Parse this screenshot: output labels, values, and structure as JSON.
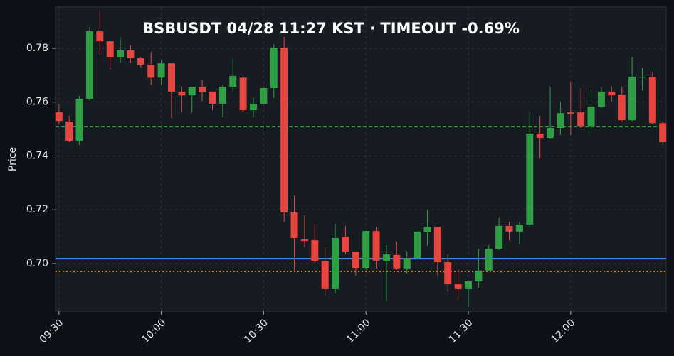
{
  "chart_data": {
    "type": "candlestick",
    "title": "BSBUSDT  04/28 11:27 KST  ·  TIMEOUT -0.69%",
    "ylabel": "Price",
    "x": [
      "09:30",
      "09:33",
      "09:36",
      "09:39",
      "09:42",
      "09:45",
      "09:48",
      "09:51",
      "09:54",
      "09:57",
      "10:00",
      "10:03",
      "10:06",
      "10:09",
      "10:12",
      "10:15",
      "10:18",
      "10:21",
      "10:24",
      "10:27",
      "10:30",
      "10:33",
      "10:36",
      "10:39",
      "10:42",
      "10:45",
      "10:48",
      "10:51",
      "10:54",
      "10:57",
      "11:00",
      "11:03",
      "11:06",
      "11:09",
      "11:12",
      "11:15",
      "11:18",
      "11:21",
      "11:24",
      "11:27",
      "11:30",
      "11:33",
      "11:36",
      "11:39",
      "11:42",
      "11:45",
      "11:48",
      "11:51",
      "11:54",
      "11:57",
      "12:00",
      "12:03",
      "12:06",
      "12:09",
      "12:12",
      "12:15",
      "12:18",
      "12:21",
      "12:24",
      "12:27"
    ],
    "open": [
      0.7562,
      0.7528,
      0.7456,
      0.7612,
      0.7863,
      0.7826,
      0.7768,
      0.7792,
      0.7763,
      0.7739,
      0.7691,
      0.7744,
      0.7639,
      0.7625,
      0.7657,
      0.7639,
      0.7594,
      0.7657,
      0.7691,
      0.757,
      0.7594,
      0.7652,
      0.7802,
      0.719,
      0.709,
      0.7087,
      0.7008,
      0.6905,
      0.71,
      0.7045,
      0.6984,
      0.7121,
      0.7008,
      0.7032,
      0.6982,
      0.7021,
      0.7116,
      0.7137,
      0.7005,
      0.6923,
      0.6905,
      0.6934,
      0.6974,
      0.7055,
      0.714,
      0.7119,
      0.7145,
      0.7483,
      0.7467,
      0.7504,
      0.7562,
      0.7562,
      0.7509,
      0.7583,
      0.7639,
      0.7628,
      0.7533,
      0.7691,
      0.7694,
      0.7522
    ],
    "high": [
      0.7591,
      0.7549,
      0.7623,
      0.7879,
      0.7939,
      0.7826,
      0.7842,
      0.781,
      0.7768,
      0.7786,
      0.7755,
      0.7744,
      0.7657,
      0.7657,
      0.7683,
      0.7639,
      0.7662,
      0.776,
      0.7697,
      0.7617,
      0.7657,
      0.7815,
      0.7842,
      0.7253,
      0.7179,
      0.7148,
      0.7063,
      0.7148,
      0.714,
      0.7045,
      0.7121,
      0.7135,
      0.7069,
      0.7082,
      0.7045,
      0.7119,
      0.7198,
      0.7137,
      0.7037,
      0.6982,
      0.6934,
      0.7055,
      0.7069,
      0.7169,
      0.7156,
      0.7156,
      0.7562,
      0.7549,
      0.7657,
      0.7602,
      0.7675,
      0.7652,
      0.7646,
      0.7657,
      0.7657,
      0.7657,
      0.7768,
      0.7726,
      0.7712,
      0.7528
    ],
    "low": [
      0.7517,
      0.7451,
      0.7441,
      0.7607,
      0.7776,
      0.7723,
      0.7747,
      0.7747,
      0.7728,
      0.7662,
      0.7662,
      0.7541,
      0.7562,
      0.7562,
      0.7604,
      0.757,
      0.7544,
      0.7641,
      0.7565,
      0.7544,
      0.7591,
      0.7615,
      0.7156,
      0.6968,
      0.7061,
      0.7003,
      0.6879,
      0.6889,
      0.7034,
      0.6955,
      0.6976,
      0.6982,
      0.686,
      0.6976,
      0.6963,
      0.7016,
      0.7066,
      0.6955,
      0.6897,
      0.6863,
      0.6839,
      0.691,
      0.6974,
      0.705,
      0.7087,
      0.7071,
      0.714,
      0.7391,
      0.7462,
      0.7478,
      0.7478,
      0.7504,
      0.7483,
      0.7578,
      0.7602,
      0.7528,
      0.7528,
      0.7644,
      0.7517,
      0.7441
    ],
    "close": [
      0.753,
      0.7456,
      0.7612,
      0.7863,
      0.7826,
      0.7768,
      0.7792,
      0.7763,
      0.7739,
      0.7691,
      0.7744,
      0.7639,
      0.7625,
      0.7657,
      0.7636,
      0.7594,
      0.7657,
      0.7697,
      0.757,
      0.7594,
      0.7652,
      0.7802,
      0.719,
      0.7095,
      0.7084,
      0.7008,
      0.6905,
      0.7095,
      0.7045,
      0.6984,
      0.7121,
      0.7011,
      0.7034,
      0.6982,
      0.7021,
      0.7119,
      0.7137,
      0.7005,
      0.6923,
      0.6905,
      0.6934,
      0.6974,
      0.7055,
      0.714,
      0.7119,
      0.7145,
      0.7483,
      0.7467,
      0.7504,
      0.7559,
      0.7557,
      0.7509,
      0.7583,
      0.7639,
      0.7625,
      0.7533,
      0.7694,
      0.7694,
      0.7522,
      0.7451
    ],
    "up_color": "#2ea043",
    "down_color": "#e5463f",
    "hlines": [
      {
        "value": 0.7509,
        "color": "#4caf50",
        "style": "dashed"
      },
      {
        "value": 0.7018,
        "color": "#4f8ff7",
        "style": "solid"
      },
      {
        "value": 0.6971,
        "color": "#f0a030",
        "style": "dotted"
      }
    ],
    "xlim": [
      "09:29",
      "12:28"
    ],
    "xticks": [
      "09:30",
      "10:00",
      "10:30",
      "11:00",
      "11:30",
      "12:00"
    ],
    "ylim": [
      0.6823,
      0.7953
    ],
    "yticks": [
      {
        "value": 0.7,
        "label": "0.70"
      },
      0.72,
      0.74,
      0.76,
      0.78
    ],
    "grid": true
  }
}
